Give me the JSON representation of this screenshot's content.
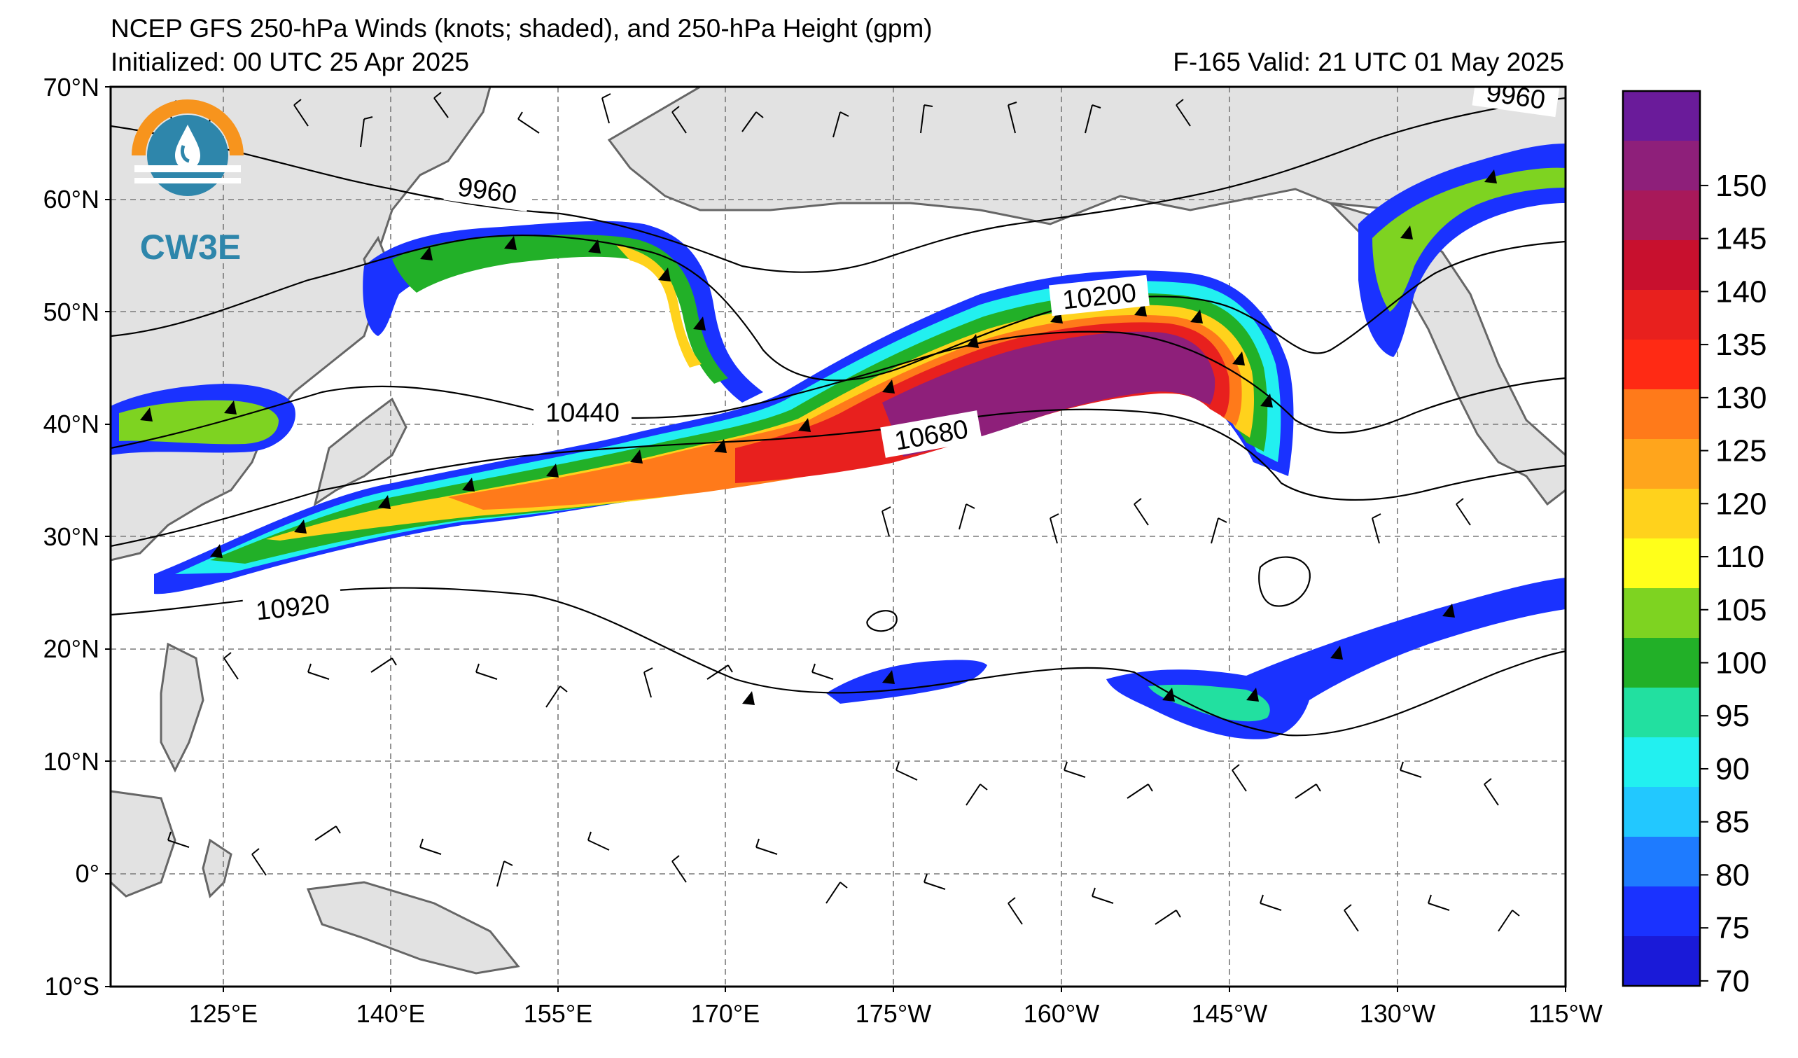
{
  "header": {
    "title": "NCEP GFS 250-hPa Winds (knots; shaded), and 250-hPa Height (gpm)",
    "initialized": "Initialized: 00 UTC 25 Apr 2025",
    "valid": "F-165  Valid: 21 UTC 01 May 2025"
  },
  "logo": {
    "text": "CW3E",
    "colors": {
      "ring_orange": "#F7941D",
      "ring_blue": "#2E86AB",
      "text_blue": "#2E86AB"
    }
  },
  "axes": {
    "lat_ticks": [
      "70°N",
      "60°N",
      "50°N",
      "40°N",
      "30°N",
      "20°N",
      "10°N",
      "0°",
      "10°S"
    ],
    "lon_ticks": [
      "125°E",
      "140°E",
      "155°E",
      "170°E",
      "175°W",
      "160°W",
      "145°W",
      "130°W",
      "115°W"
    ],
    "lat_range": [
      -10,
      70
    ],
    "lon_range_east": [
      110,
      245
    ]
  },
  "contour_labels": [
    "9960",
    "9960",
    "10200",
    "10440",
    "10680",
    "10920"
  ],
  "colorbar": {
    "labels": [
      "150",
      "145",
      "140",
      "135",
      "130",
      "125",
      "120",
      "110",
      "105",
      "100",
      "95",
      "90",
      "85",
      "80",
      "75",
      "70"
    ],
    "colors": [
      "#6a1b9a",
      "#8e1f7a",
      "#a8195a",
      "#c8102e",
      "#e8201e",
      "#ff2a14",
      "#ff7a1a",
      "#ffa51c",
      "#ffd21c",
      "#ffff1a",
      "#7ed321",
      "#22b028",
      "#22e0a0",
      "#22f0f0",
      "#22c8ff",
      "#1e7bff",
      "#1a32ff",
      "#1a1ad8"
    ],
    "range_knots": [
      70,
      150
    ]
  },
  "colors": {
    "land": "#e2e2e2",
    "coast": "#666666",
    "grid": "#7a7a7a",
    "contour": "#000000"
  }
}
